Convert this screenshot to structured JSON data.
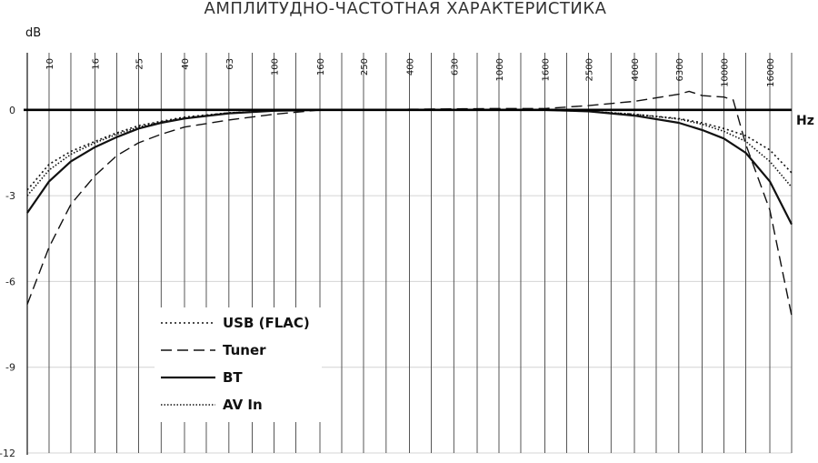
{
  "chart_data": {
    "type": "line",
    "title": "АМПЛИТУДНО-ЧАСТОТНАЯ ХАРАКТЕРИСТИКА",
    "ylabel": "dB",
    "xlabel": "Hz",
    "x_scale": "log",
    "xlim": [
      8,
      20000
    ],
    "ylim": [
      -12,
      2
    ],
    "yticks": [
      0,
      -3,
      -6,
      -9,
      -12
    ],
    "xticks": [
      10,
      16,
      25,
      40,
      63,
      100,
      160,
      250,
      400,
      630,
      1000,
      1600,
      2500,
      4000,
      6300,
      10000,
      16000
    ],
    "xtick_labels": [
      "10",
      "16",
      "25",
      "40",
      "63",
      "100",
      "160",
      "250",
      "400",
      "630",
      "1000",
      "1600",
      "2500",
      "4000",
      "6300",
      "10000",
      "16000"
    ],
    "x_minor_ticks": [
      12.5,
      20,
      31.5,
      50,
      80,
      125,
      200,
      315,
      500,
      800,
      1250,
      2000,
      3150,
      5000,
      8000,
      12500,
      20000
    ],
    "grid": true,
    "legend_position": "bottom-left",
    "series": [
      {
        "name": "USB (FLAC)",
        "style": "dotted",
        "x": [
          8,
          10,
          12.5,
          16,
          20,
          25,
          31.5,
          40,
          63,
          100,
          160,
          250,
          1000,
          1600,
          2500,
          4000,
          6300,
          8000,
          10000,
          12500,
          16000,
          20000
        ],
        "y": [
          -2.8,
          -1.9,
          -1.45,
          -1.1,
          -0.8,
          -0.55,
          -0.4,
          -0.25,
          -0.1,
          -0.03,
          0,
          0,
          0,
          0,
          -0.05,
          -0.15,
          -0.3,
          -0.45,
          -0.65,
          -0.9,
          -1.4,
          -2.2
        ]
      },
      {
        "name": "Tuner",
        "style": "dashed",
        "x": [
          8,
          10,
          12.5,
          16,
          20,
          25,
          31.5,
          40,
          63,
          100,
          160,
          1000,
          1600,
          2500,
          4000,
          6300,
          7000,
          8000,
          10000,
          11000,
          12500,
          16000,
          20000
        ],
        "y": [
          -6.8,
          -4.8,
          -3.3,
          -2.3,
          -1.6,
          -1.15,
          -0.85,
          -0.6,
          -0.35,
          -0.15,
          0,
          0.05,
          0.05,
          0.15,
          0.3,
          0.55,
          0.65,
          0.5,
          0.45,
          0.35,
          -1.2,
          -3.5,
          -7.2
        ]
      },
      {
        "name": "BT",
        "style": "solid",
        "x": [
          8,
          10,
          12.5,
          16,
          20,
          25,
          31.5,
          40,
          63,
          100,
          160,
          1000,
          1600,
          2500,
          4000,
          6300,
          8000,
          10000,
          12500,
          16000,
          20000
        ],
        "y": [
          -3.6,
          -2.5,
          -1.8,
          -1.3,
          -0.95,
          -0.65,
          -0.45,
          -0.3,
          -0.12,
          -0.03,
          0,
          0,
          0,
          -0.05,
          -0.2,
          -0.45,
          -0.7,
          -1.0,
          -1.5,
          -2.5,
          -4.0
        ]
      },
      {
        "name": "AV In",
        "style": "dotted-fine",
        "x": [
          8,
          10,
          12.5,
          16,
          20,
          25,
          31.5,
          40,
          63,
          100,
          160,
          1000,
          1600,
          2500,
          4000,
          6300,
          8000,
          10000,
          12500,
          16000,
          20000
        ],
        "y": [
          -3.0,
          -2.1,
          -1.55,
          -1.15,
          -0.85,
          -0.6,
          -0.42,
          -0.28,
          -0.1,
          -0.03,
          0,
          0,
          0,
          -0.05,
          -0.15,
          -0.32,
          -0.5,
          -0.75,
          -1.1,
          -1.8,
          -2.7
        ]
      }
    ]
  }
}
